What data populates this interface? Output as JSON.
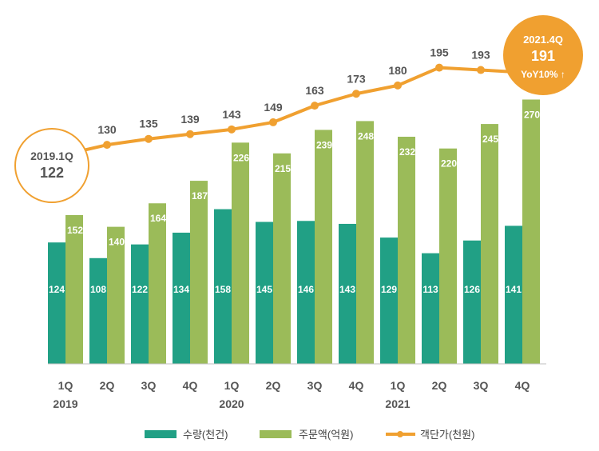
{
  "chart_data": {
    "type": "bar",
    "categories": [
      "1Q",
      "2Q",
      "3Q",
      "4Q",
      "1Q",
      "2Q",
      "3Q",
      "4Q",
      "1Q",
      "2Q",
      "3Q",
      "4Q"
    ],
    "year_labels": [
      {
        "category_index": 0,
        "label": "2019"
      },
      {
        "category_index": 4,
        "label": "2020"
      },
      {
        "category_index": 8,
        "label": "2021"
      }
    ],
    "series": [
      {
        "name": "수량(천건)",
        "kind": "bar",
        "color": "#21a085",
        "values": [
          124,
          108,
          122,
          134,
          158,
          145,
          146,
          143,
          129,
          113,
          126,
          141
        ]
      },
      {
        "name": "주문액(억원)",
        "kind": "bar",
        "color": "#9bbb59",
        "values": [
          152,
          140,
          164,
          187,
          226,
          215,
          239,
          248,
          232,
          220,
          245,
          270
        ]
      },
      {
        "name": "객단가(천원)",
        "kind": "line",
        "color": "#f0a030",
        "values": [
          122,
          130,
          135,
          139,
          143,
          149,
          163,
          173,
          180,
          195,
          193,
          191
        ]
      }
    ],
    "bar_axis_max": 290,
    "line_axis_range": [
      50,
      225
    ],
    "callouts": {
      "start": {
        "period": "2019.1Q",
        "value": "122"
      },
      "end": {
        "period": "2021.4Q",
        "value": "191",
        "note": "YoY10% ↑"
      }
    },
    "legend_position": "bottom-center",
    "grid": false
  }
}
